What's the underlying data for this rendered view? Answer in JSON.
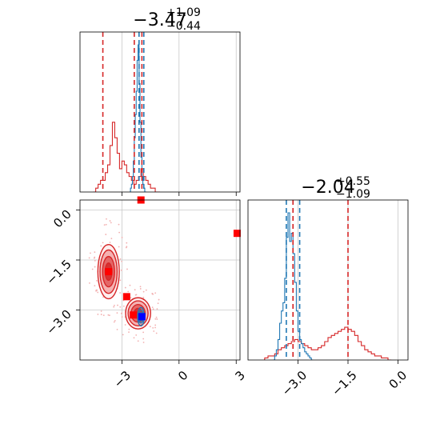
{
  "chart_data": {
    "type": "corner",
    "colors": {
      "series_a": "#d62728",
      "series_b": "#1f77b4",
      "marker_a": "#ff0000",
      "marker_b": "#0000ff"
    },
    "params": [
      "",
      ""
    ],
    "titles": [
      {
        "median": "−3.47",
        "plus": "+1.09",
        "minus": "−0.44"
      },
      {
        "median": "−2.04",
        "plus": "+0.55",
        "minus": "−1.09"
      }
    ],
    "axis_ranges": {
      "p1": [
        -5.2,
        3.2
      ],
      "p2": [
        -4.5,
        0.3
      ]
    },
    "ticks": {
      "p1": [
        {
          "v": -3,
          "label": "−3"
        },
        {
          "v": 0,
          "label": "0"
        },
        {
          "v": 3,
          "label": "3"
        }
      ],
      "p2": [
        {
          "v": -3.0,
          "label": "−3.0"
        },
        {
          "v": -1.5,
          "label": "−1.5"
        },
        {
          "v": 0.0,
          "label": "0.0"
        }
      ]
    },
    "grid": true,
    "quantile_lines": {
      "red": {
        "p1": [
          -4.0,
          -2.35,
          -1.95
        ],
        "p2": [
          -3.15,
          -3.15,
          -1.5
        ]
      },
      "blue": {
        "p1": [
          -2.1,
          -1.85
        ],
        "p2": [
          -3.35,
          -2.95
        ]
      }
    },
    "histograms": {
      "p1_red": {
        "x_start": -4.5,
        "bin_width": 0.125,
        "counts": [
          0,
          1,
          2,
          3,
          3,
          5,
          7,
          12,
          18,
          14,
          10,
          6,
          8,
          7,
          5,
          4,
          3,
          2,
          3,
          4,
          6,
          4,
          3,
          2,
          1,
          1,
          0,
          0
        ]
      },
      "p1_blue": {
        "x_start": -2.6,
        "bin_width": 0.05,
        "counts": [
          0,
          1,
          2,
          4,
          8,
          14,
          20,
          26,
          34,
          38,
          28,
          18,
          9,
          4,
          2,
          1,
          0,
          0
        ]
      },
      "p2_red": {
        "x_start": -4.0,
        "bin_width": 0.1,
        "counts": [
          1,
          2,
          2,
          3,
          5,
          6,
          7,
          8,
          9,
          10,
          9,
          8,
          7,
          6,
          5,
          5,
          6,
          7,
          9,
          11,
          12,
          13,
          14,
          15,
          16,
          15,
          14,
          12,
          9,
          7,
          5,
          4,
          3,
          2,
          2,
          1,
          1,
          0
        ]
      },
      "p2_blue": {
        "x_start": -3.75,
        "bin_width": 0.05,
        "counts": [
          0,
          2,
          5,
          10,
          18,
          24,
          28,
          40,
          60,
          72,
          58,
          62,
          52,
          38,
          24,
          14,
          10,
          8,
          6,
          4,
          3,
          2,
          1,
          0
        ]
      }
    },
    "contours": {
      "red": [
        {
          "cx": -3.7,
          "cy": -1.85,
          "rx": 0.9,
          "ry": 1.3
        },
        {
          "cx": -2.15,
          "cy": -3.1,
          "rx": 1.05,
          "ry": 0.75
        }
      ],
      "blue": [
        {
          "cx": -2.0,
          "cy": -3.2,
          "rx": 0.35,
          "ry": 0.55
        }
      ]
    },
    "markers": [
      {
        "series": "red",
        "x": -2.0,
        "y": 0.3
      },
      {
        "series": "red",
        "x": 3.05,
        "y": -0.7
      },
      {
        "series": "red",
        "x": -3.7,
        "y": -1.85
      },
      {
        "series": "red",
        "x": -2.75,
        "y": -2.6
      },
      {
        "series": "red",
        "x": -2.4,
        "y": -3.15
      },
      {
        "series": "blue",
        "x": -1.95,
        "y": -3.2
      }
    ]
  }
}
